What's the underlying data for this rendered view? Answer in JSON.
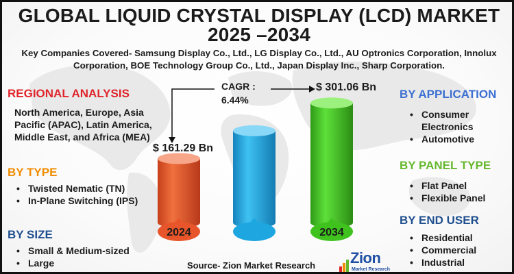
{
  "title": {
    "line1": "GLOBAL LIQUID CRYSTAL DISPLAY (LCD) MARKET",
    "line2": "2025 –2034"
  },
  "companies": "Key Companies Covered- Samsung Display Co., Ltd., LG Display Co., Ltd., AU Optronics Corporation, Innolux Corporation, BOE Technology Group Co., Ltd., Japan Display Inc., Sharp Corporation.",
  "regional": {
    "heading": "REGIONAL ANALYSIS",
    "text": "North America, Europe, Asia Pacific (APAC), Latin America, Middle East, and Africa (MEA)"
  },
  "by_type": {
    "heading": "BY TYPE",
    "items": [
      "Twisted Nematic (TN)",
      "In-Plane Switching (IPS)"
    ]
  },
  "by_size": {
    "heading": "BY SIZE",
    "items": [
      "Small & Medium-sized",
      "Large"
    ]
  },
  "by_application": {
    "heading": "BY APPLICATION",
    "items": [
      "Consumer Electronics",
      "Automotive"
    ]
  },
  "by_panel_type": {
    "heading": "BY PANEL TYPE",
    "items": [
      "Flat Panel",
      "Flexible Panel"
    ]
  },
  "by_end_user": {
    "heading": "BY END USER",
    "items": [
      "Residential",
      "Commercial",
      "Industrial"
    ]
  },
  "source": "Source- Zion Market Research",
  "logo": {
    "word": "Zion",
    "sub": "Market Research"
  },
  "colors": {
    "red_heading": "#e0252b",
    "orange_heading": "#f08c00",
    "blue_heading": "#3b6fd1",
    "green_heading": "#66b82e",
    "navy_heading": "#1f4f8f",
    "bar_2024": "#e8552a",
    "bar_mid": "#1ea6e0",
    "bar_2034": "#3fc21e",
    "text": "#1b1b1b"
  },
  "chart_data": {
    "type": "bar",
    "categories": [
      "2024",
      "",
      "2034"
    ],
    "values": [
      161.29,
      null,
      301.06
    ],
    "value_labels": [
      "$ 161.29 Bn",
      "",
      "$ 301.06 Bn"
    ],
    "cagr_label": "CAGR :",
    "cagr_value": "6.44%"
  }
}
